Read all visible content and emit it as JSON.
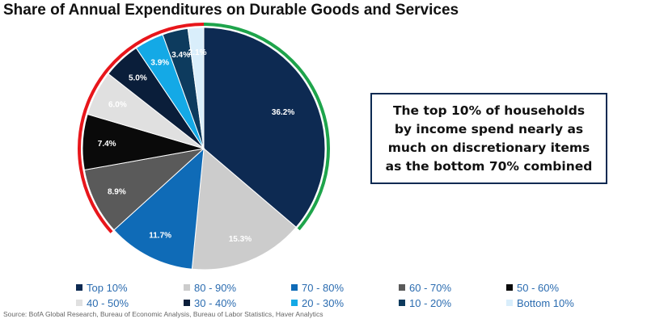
{
  "title": "Share of Annual Expenditures on Durable Goods and Services",
  "callout": "The top 10% of households by income spend nearly as much on discretionary items as the bottom 70% combined",
  "source": "Source: BofA Global Research, Bureau of Economic Analysis, Bureau of Labor Statistics, Haver Analytics",
  "colors": {
    "arc_top": "#1ea44b",
    "arc_bottom": "#e8161b"
  },
  "chart_data": {
    "type": "pie",
    "title": "Share of Annual Expenditures on Durable Goods and Services",
    "start": "12 o'clock",
    "direction": "clockwise",
    "legend_placement": "bottom",
    "slices": [
      {
        "label": "Top 10%",
        "value": 36.2,
        "display": "36.2%",
        "color": "#0d2a52",
        "label_color": "#ffffff"
      },
      {
        "label": "80 - 90%",
        "value": 15.3,
        "display": "15.3%",
        "color": "#cccccc",
        "label_color": "#ffffff"
      },
      {
        "label": "70 - 80%",
        "value": 11.7,
        "display": "11.7%",
        "color": "#0f6bb7",
        "label_color": "#ffffff"
      },
      {
        "label": "60 - 70%",
        "value": 8.9,
        "display": "8.9%",
        "color": "#5a5a5a",
        "label_color": "#ffffff"
      },
      {
        "label": "50 - 60%",
        "value": 7.4,
        "display": "7.4%",
        "color": "#0a0a0a",
        "label_color": "#ffffff"
      },
      {
        "label": "40 - 50%",
        "value": 6.0,
        "display": "6.0%",
        "color": "#e0e0e0",
        "label_color": "#ffffff"
      },
      {
        "label": "30 - 40%",
        "value": 5.0,
        "display": "5.0%",
        "color": "#0a1e3a",
        "label_color": "#ffffff"
      },
      {
        "label": "20 - 30%",
        "value": 3.9,
        "display": "3.9%",
        "color": "#14a9e6",
        "label_color": "#ffffff"
      },
      {
        "label": "10 - 20%",
        "value": 3.4,
        "display": "3.4%",
        "color": "#0d3b5e",
        "label_color": "#ffffff"
      },
      {
        "label": "Bottom 10%",
        "value": 2.1,
        "display": "2.1%",
        "color": "#d9eefb",
        "label_color": "#ffffff"
      }
    ],
    "highlight_arcs": [
      {
        "covers": [
          "Top 10%"
        ],
        "color": "#1ea44b"
      },
      {
        "covers": [
          "40 - 50%",
          "30 - 40%",
          "20 - 30%",
          "10 - 20%",
          "Bottom 10%",
          "50 - 60%",
          "60 - 70%"
        ],
        "color": "#e8161b"
      }
    ]
  }
}
